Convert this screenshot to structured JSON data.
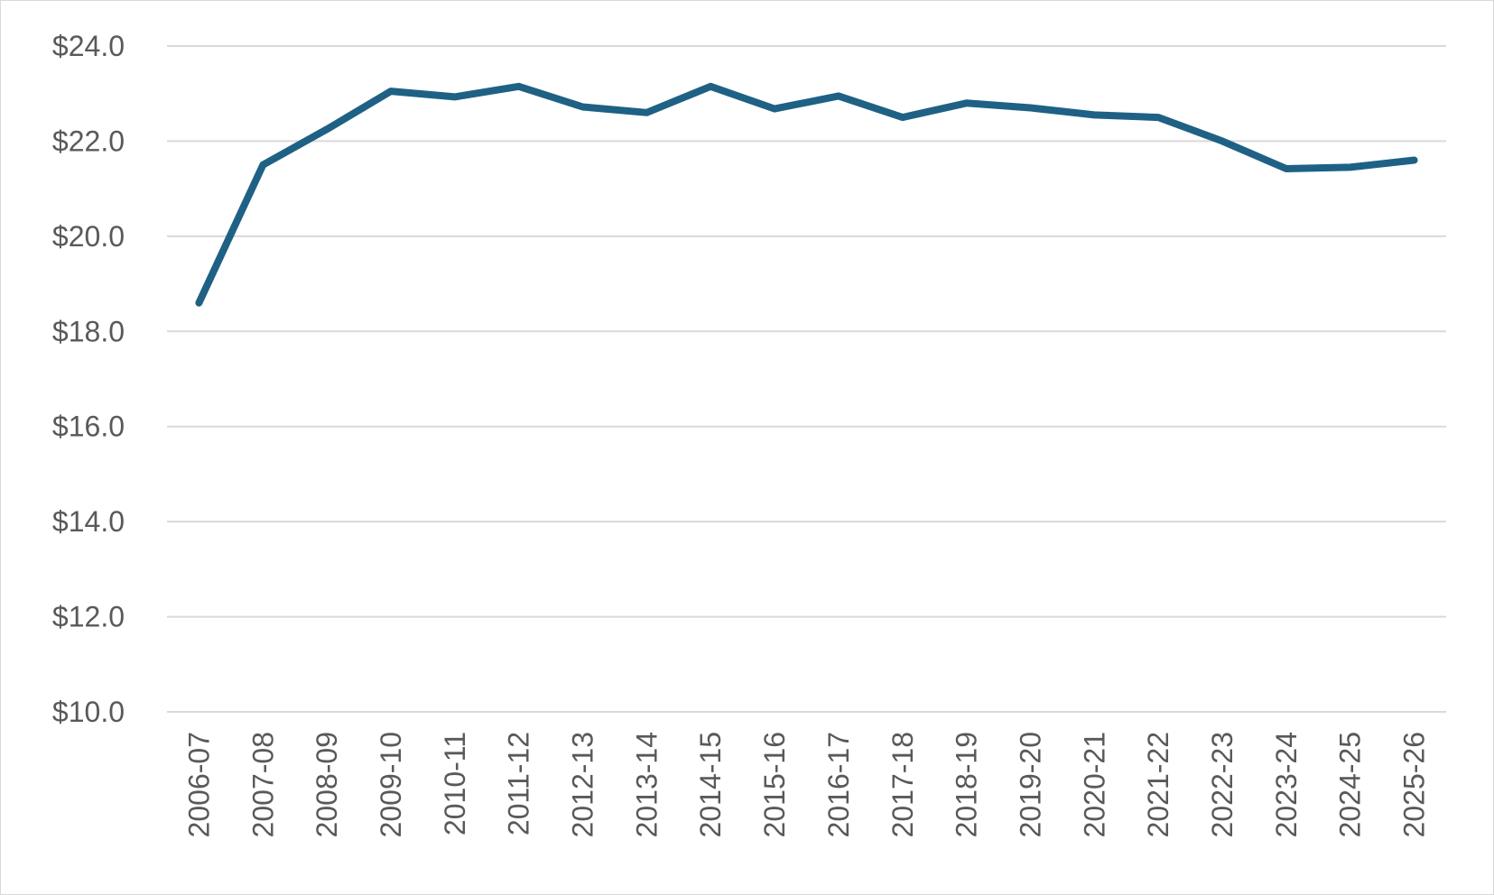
{
  "chart_data": {
    "type": "line",
    "title": "",
    "xlabel": "",
    "ylabel": "",
    "categories": [
      "2006-07",
      "2007-08",
      "2008-09",
      "2009-10",
      "2010-11",
      "2011-12",
      "2012-13",
      "2013-14",
      "2014-15",
      "2015-16",
      "2016-17",
      "2017-18",
      "2018-19",
      "2019-20",
      "2020-21",
      "2021-22",
      "2022-23",
      "2023-24",
      "2024-25",
      "2025-26"
    ],
    "series": [
      {
        "values": [
          18.6,
          21.5,
          22.25,
          23.05,
          22.93,
          23.15,
          22.72,
          22.6,
          23.15,
          22.68,
          22.95,
          22.5,
          22.8,
          22.7,
          22.55,
          22.5,
          22.0,
          21.42,
          21.45,
          21.6
        ],
        "color": "#1f6185"
      }
    ],
    "ylim": [
      10,
      24
    ],
    "yticks": [
      10,
      12,
      14,
      16,
      18,
      20,
      22,
      24
    ],
    "ytick_labels": [
      "$10.0",
      "$12.0",
      "$14.0",
      "$16.0",
      "$18.0",
      "$20.0",
      "$22.0",
      "$24.0"
    ],
    "grid": true,
    "legend": "none"
  }
}
